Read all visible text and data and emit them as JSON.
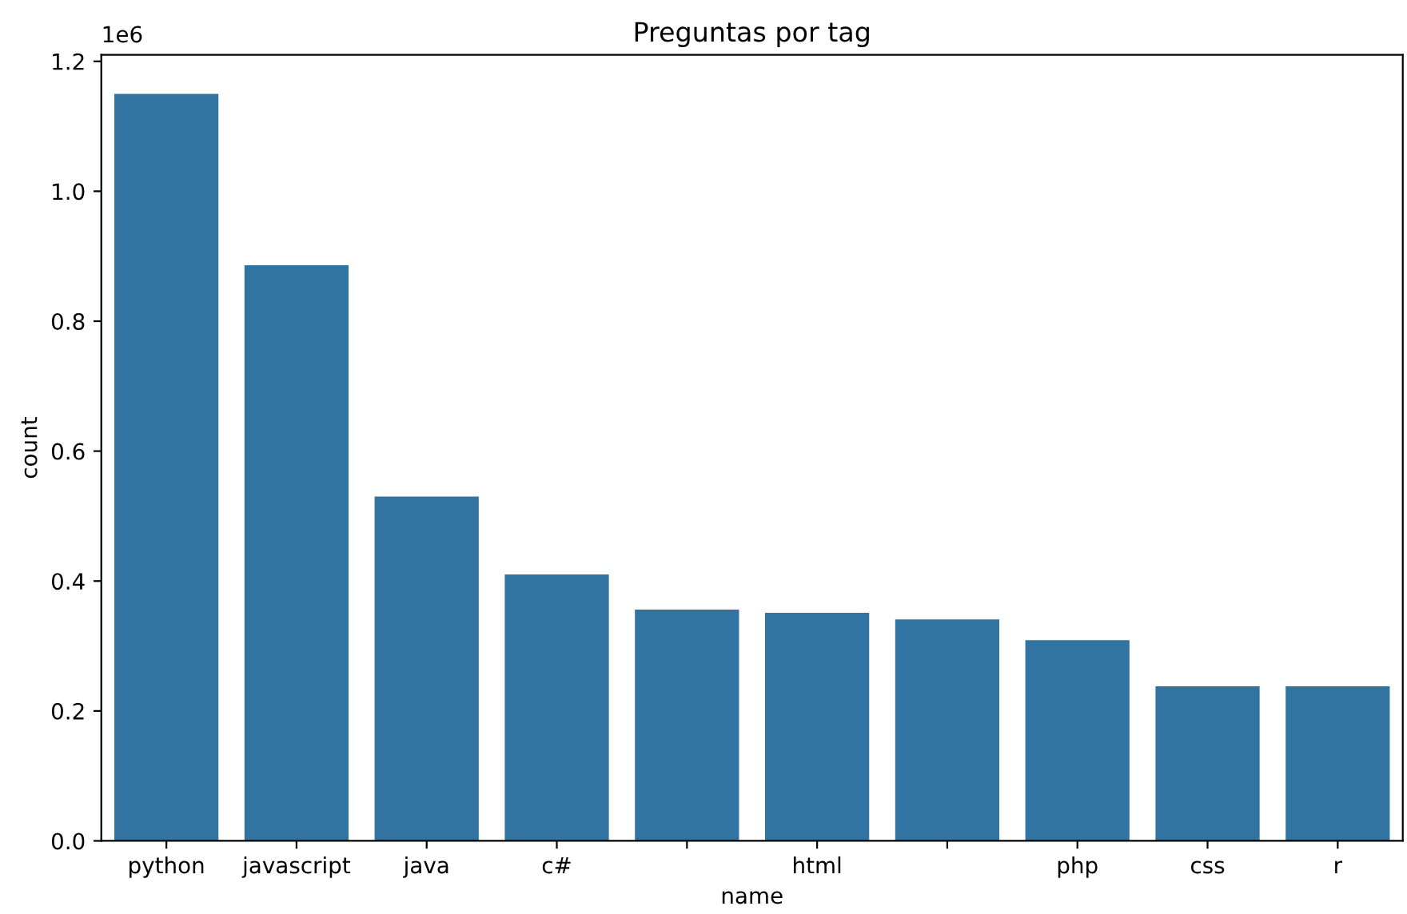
{
  "chart_data": {
    "type": "bar",
    "title": "Preguntas por tag",
    "xlabel": "name",
    "ylabel": "count",
    "categories": [
      "python",
      "javascript",
      "java",
      "c#",
      null,
      "html",
      null,
      "php",
      "css",
      "r"
    ],
    "values": [
      1.15,
      0.886,
      0.53,
      0.41,
      0.356,
      0.351,
      0.341,
      0.309,
      0.238,
      0.238
    ],
    "color": "#3274a1",
    "ylim": [
      0,
      1.21
    ],
    "yticks": [
      {
        "value": 0,
        "label": "0.0"
      },
      {
        "value": 0.2,
        "label": "0.2"
      },
      {
        "value": 0.4,
        "label": "0.4"
      },
      {
        "value": 0.6,
        "label": "0.6"
      },
      {
        "value": 0.8,
        "label": "0.8"
      },
      {
        "value": 1.0,
        "label": "1.0"
      },
      {
        "value": 1.2,
        "label": "1.2"
      }
    ],
    "annotations": [
      "1e6"
    ],
    "grid": false
  }
}
